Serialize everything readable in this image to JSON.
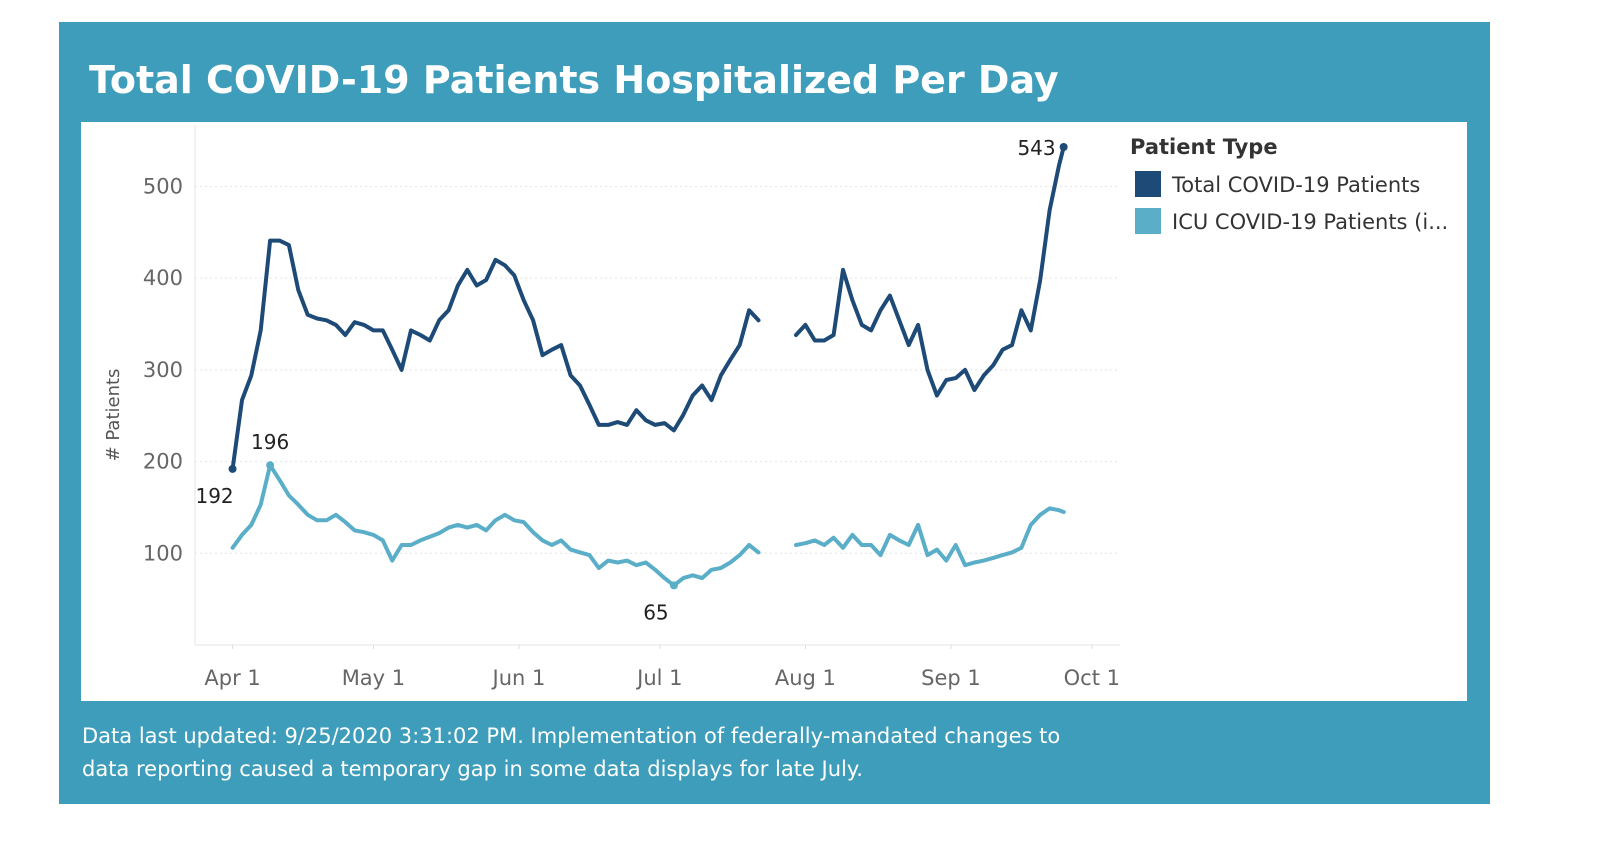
{
  "chart_data": {
    "type": "line",
    "title": "Total COVID-19 Patients Hospitalized Per Day",
    "y_label": "# Patients",
    "legend_title": "Patient Type",
    "legend": "right",
    "grid": true,
    "note": "Data last updated: 9/25/2020 3:31:02 PM. Implementation of federally-mandated changes to data reporting caused a temporary gap in some data displays for late July.",
    "x": [
      "04-01",
      "04-03",
      "04-05",
      "04-07",
      "04-09",
      "04-11",
      "04-13",
      "04-15",
      "04-17",
      "04-19",
      "04-21",
      "04-23",
      "04-25",
      "04-27",
      "04-29",
      "05-01",
      "05-03",
      "05-05",
      "05-07",
      "05-09",
      "05-11",
      "05-13",
      "05-15",
      "05-17",
      "05-19",
      "05-21",
      "05-23",
      "05-25",
      "05-27",
      "05-29",
      "05-31",
      "06-02",
      "06-04",
      "06-06",
      "06-08",
      "06-10",
      "06-12",
      "06-14",
      "06-16",
      "06-18",
      "06-20",
      "06-22",
      "06-24",
      "06-26",
      "06-28",
      "06-30",
      "07-02",
      "07-04",
      "07-06",
      "07-08",
      "07-10",
      "07-12",
      "07-14",
      "07-16",
      "07-18",
      "07-20",
      "07-22",
      "07-24",
      "07-26",
      "07-28",
      "07-30",
      "08-01",
      "08-03",
      "08-05",
      "08-07",
      "08-09",
      "08-11",
      "08-13",
      "08-15",
      "08-17",
      "08-19",
      "08-21",
      "08-23",
      "08-25",
      "08-27",
      "08-29",
      "08-31",
      "09-02",
      "09-04",
      "09-06",
      "09-08",
      "09-10",
      "09-12",
      "09-14",
      "09-16",
      "09-18",
      "09-20",
      "09-22",
      "09-24",
      "09-25"
    ],
    "xlim": [
      "03-24",
      "10-07"
    ],
    "xticks": [
      {
        "value": "04-01",
        "label": "Apr 1"
      },
      {
        "value": "05-01",
        "label": "May 1"
      },
      {
        "value": "06-01",
        "label": "Jun 1"
      },
      {
        "value": "07-01",
        "label": "Jul 1"
      },
      {
        "value": "08-01",
        "label": "Aug 1"
      },
      {
        "value": "09-01",
        "label": "Sep 1"
      },
      {
        "value": "10-01",
        "label": "Oct 1"
      }
    ],
    "ylim": [
      0,
      567
    ],
    "yticks": [
      100,
      200,
      300,
      400,
      500
    ],
    "series": [
      {
        "name": "Total COVID-19 Patients",
        "color": "#1d4a76",
        "values": [
          192,
          267,
          294,
          343,
          441,
          441,
          436,
          387,
          360,
          356,
          354,
          349,
          338,
          352,
          349,
          343,
          343,
          322,
          300,
          343,
          338,
          332,
          354,
          365,
          392,
          409,
          392,
          398,
          420,
          414,
          403,
          376,
          354,
          316,
          322,
          327,
          294,
          283,
          262,
          240,
          240,
          243,
          240,
          256,
          245,
          240,
          242,
          234,
          251,
          272,
          283,
          267,
          294,
          311,
          327,
          365,
          354,
          null,
          null,
          null,
          338,
          349,
          332,
          332,
          338,
          409,
          376,
          349,
          343,
          365,
          381,
          354,
          327,
          349,
          300,
          272,
          289,
          291,
          300,
          278,
          294,
          305,
          322,
          327,
          365,
          343,
          398,
          474,
          523,
          543
        ]
      },
      {
        "name": "ICU COVID-19 Patients (i...",
        "color": "#5aaec8",
        "values": [
          106,
          120,
          131,
          153,
          196,
          180,
          163,
          153,
          142,
          136,
          136,
          142,
          134,
          125,
          123,
          120,
          114,
          92,
          109,
          109,
          114,
          118,
          122,
          128,
          131,
          128,
          131,
          125,
          136,
          142,
          136,
          134,
          123,
          114,
          109,
          114,
          104,
          101,
          98,
          84,
          92,
          90,
          92,
          87,
          90,
          82,
          73,
          65,
          73,
          76,
          73,
          82,
          84,
          90,
          98,
          109,
          101,
          null,
          null,
          null,
          109,
          111,
          114,
          109,
          117,
          106,
          120,
          109,
          109,
          98,
          120,
          114,
          109,
          131,
          98,
          104,
          92,
          109,
          87,
          90,
          92,
          95,
          98,
          101,
          106,
          131,
          142,
          149,
          147,
          145
        ]
      }
    ]
  }
}
